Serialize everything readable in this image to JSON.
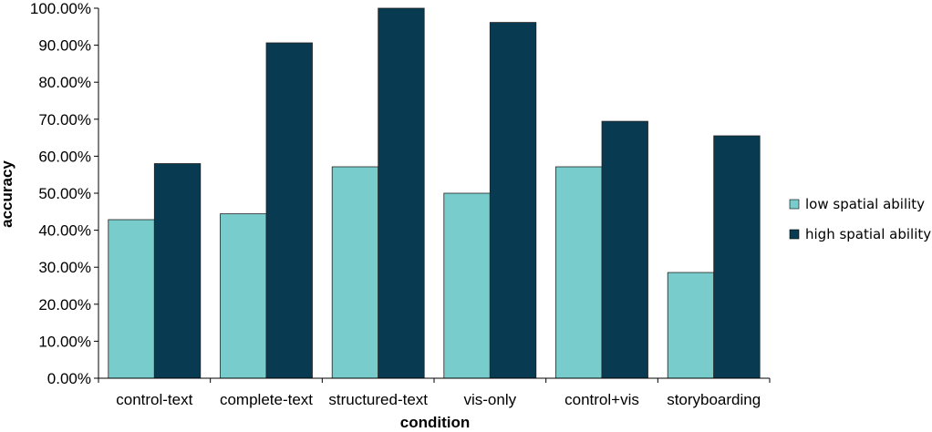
{
  "chart_data": {
    "type": "bar",
    "categories": [
      "control-text",
      "complete-text",
      "structured-text",
      "vis-only",
      "control+vis",
      "storyboarding"
    ],
    "series": [
      {
        "name": "low spatial ability",
        "values": [
          42.86,
          44.44,
          57.14,
          50.0,
          57.14,
          28.57
        ],
        "color": "#78cccc"
      },
      {
        "name": "high spatial ability",
        "values": [
          58.0,
          90.63,
          100.0,
          96.15,
          69.44,
          65.52
        ],
        "color": "#083a52"
      }
    ],
    "xlabel": "condition",
    "ylabel": "accuracy",
    "ylim": [
      0,
      100
    ],
    "yticks": [
      "0.00%",
      "10.00%",
      "20.00%",
      "30.00%",
      "40.00%",
      "50.00%",
      "60.00%",
      "70.00%",
      "80.00%",
      "90.00%",
      "100.00%"
    ],
    "grid": false,
    "legend_position": "right"
  }
}
